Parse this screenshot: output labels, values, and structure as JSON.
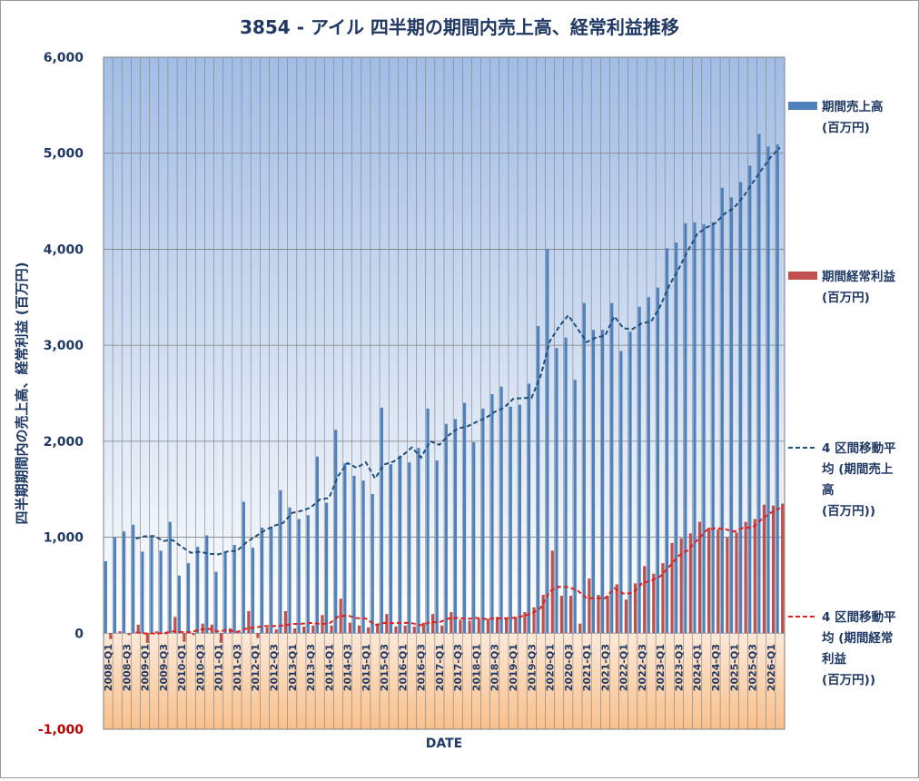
{
  "chart_data": {
    "type": "bar",
    "title": "3854 - アイル 四半期の期間内売上高、経常利益推移",
    "xlabel": "DATE",
    "ylabel": "四半期期間内の売上高、経常利益 (百万円)",
    "ylim": [
      -1000,
      6000
    ],
    "yticks": [
      -1000,
      0,
      1000,
      2000,
      3000,
      4000,
      5000,
      6000
    ],
    "ytick_labels": [
      "-1,000",
      "0",
      "1,000",
      "2,000",
      "3,000",
      "4,000",
      "5,000",
      "6,000"
    ],
    "categories": [
      "2008-Q1",
      "2008-Q2",
      "2008-Q3",
      "2008-Q4",
      "2009-Q1",
      "2009-Q2",
      "2009-Q3",
      "2009-Q4",
      "2010-Q1",
      "2010-Q2",
      "2010-Q3",
      "2010-Q4",
      "2011-Q1",
      "2011-Q2",
      "2011-Q3",
      "2011-Q4",
      "2012-Q1",
      "2012-Q2",
      "2012-Q3",
      "2012-Q4",
      "2013-Q1",
      "2013-Q2",
      "2013-Q3",
      "2013-Q4",
      "2014-Q1",
      "2014-Q2",
      "2014-Q3",
      "2014-Q4",
      "2015-Q1",
      "2015-Q2",
      "2015-Q3",
      "2015-Q4",
      "2016-Q1",
      "2016-Q2",
      "2016-Q3",
      "2016-Q4",
      "2017-Q1",
      "2017-Q2",
      "2017-Q3",
      "2017-Q4",
      "2018-Q1",
      "2018-Q2",
      "2018-Q3",
      "2018-Q4",
      "2019-Q1",
      "2019-Q2",
      "2019-Q3",
      "2019-Q4",
      "2020-Q1",
      "2020-Q2",
      "2020-Q3",
      "2020-Q4",
      "2021-Q1",
      "2021-Q2",
      "2021-Q3",
      "2021-Q4",
      "2022-Q1",
      "2022-Q2",
      "2022-Q3",
      "2022-Q4",
      "2023-Q1",
      "2023-Q2",
      "2023-Q3",
      "2023-Q4",
      "2024-Q1",
      "2024-Q2",
      "2024-Q3",
      "2024-Q4",
      "2025-Q1",
      "2025-Q2",
      "2025-Q3",
      "2025-Q4",
      "2026-Q1",
      "2026-Q2"
    ],
    "x_tick_labels": [
      "2008-Q1",
      "2008-Q3",
      "2009-Q1",
      "2009-Q3",
      "2010-Q1",
      "2010-Q3",
      "2011-Q1",
      "2011-Q3",
      "2012-Q1",
      "2012-Q3",
      "2013-Q1",
      "2013-Q3",
      "2014-Q1",
      "2014-Q3",
      "2015-Q1",
      "2015-Q3",
      "2016-Q1",
      "2016-Q3",
      "2017-Q1",
      "2017-Q3",
      "2018-Q1",
      "2018-Q3",
      "2019-Q1",
      "2019-Q3",
      "2020-Q1",
      "2020-Q3",
      "2021-Q1",
      "2021-Q3",
      "2022-Q1",
      "2022-Q3",
      "2023-Q1",
      "2023-Q3",
      "2024-Q1",
      "2024-Q3",
      "2025-Q1",
      "2025-Q3",
      "2026-Q1"
    ],
    "series": [
      {
        "name": "期間売上高 (百万円)",
        "kind": "bar",
        "color": "#4f81bd",
        "values": [
          750,
          1000,
          1060,
          1130,
          850,
          1010,
          860,
          1160,
          600,
          730,
          900,
          1020,
          640,
          850,
          920,
          1370,
          890,
          1100,
          1110,
          1490,
          1310,
          1190,
          1230,
          1840,
          1360,
          2120,
          1770,
          1640,
          1590,
          1450,
          2350,
          1760,
          1850,
          1780,
          1930,
          2340,
          1800,
          2180,
          2230,
          2400,
          1990,
          2340,
          2490,
          2570,
          2360,
          2380,
          2600,
          3200,
          4000,
          2970,
          3080,
          2640,
          3440,
          3160,
          3160,
          3440,
          2940,
          3140,
          3400,
          3500,
          3600,
          4010,
          4070,
          4270,
          4280,
          4260,
          4280,
          4640,
          4540,
          4700,
          4870,
          5200,
          5070,
          5090
        ]
      },
      {
        "name": "期間経常利益 (百万円)",
        "kind": "bar",
        "color": "#c0504d",
        "values": [
          -60,
          20,
          -20,
          90,
          -100,
          20,
          -10,
          170,
          -90,
          -20,
          100,
          90,
          -100,
          50,
          10,
          230,
          -50,
          60,
          40,
          230,
          50,
          70,
          80,
          190,
          80,
          360,
          110,
          80,
          60,
          90,
          200,
          70,
          80,
          70,
          110,
          200,
          80,
          220,
          140,
          130,
          150,
          150,
          170,
          150,
          170,
          220,
          270,
          400,
          860,
          390,
          390,
          100,
          570,
          400,
          390,
          510,
          350,
          520,
          700,
          620,
          730,
          940,
          990,
          1040,
          1160,
          1100,
          1080,
          1000,
          1050,
          1160,
          1190,
          1340,
          1330,
          1350
        ]
      },
      {
        "name": "4 区間移動平均 (期間売上高 (百万円))",
        "kind": "line",
        "color": "#1f4e79",
        "values": [
          null,
          null,
          null,
          985,
          1010,
          1012,
          962,
          970,
          900,
          838,
          848,
          828,
          822,
          852,
          858,
          945,
          1008,
          1070,
          1118,
          1148,
          1253,
          1275,
          1308,
          1393,
          1408,
          1638,
          1773,
          1723,
          1780,
          1613,
          1758,
          1788,
          1853,
          1935,
          1830,
          2000,
          1963,
          2063,
          2133,
          2153,
          2200,
          2240,
          2305,
          2348,
          2440,
          2450,
          2450,
          2683,
          3045,
          3193,
          3313,
          3173,
          3033,
          3080,
          3100,
          3300,
          3175,
          3170,
          3230,
          3245,
          3410,
          3628,
          3795,
          3988,
          4158,
          4225,
          4275,
          4370,
          4430,
          4545,
          4688,
          4828,
          4960,
          5058
        ]
      },
      {
        "name": "4 区間移動平均 (期間経常利益 (百万円))",
        "kind": "line",
        "color": "#e0201b",
        "values": [
          null,
          null,
          null,
          10,
          -2,
          -3,
          0,
          20,
          13,
          10,
          40,
          45,
          18,
          35,
          13,
          48,
          60,
          75,
          75,
          80,
          95,
          98,
          108,
          98,
          98,
          173,
          185,
          158,
          153,
          85,
          108,
          105,
          110,
          105,
          83,
          115,
          115,
          153,
          160,
          148,
          160,
          148,
          153,
          155,
          160,
          178,
          203,
          265,
          438,
          485,
          480,
          445,
          365,
          365,
          365,
          468,
          413,
          418,
          520,
          548,
          593,
          698,
          808,
          865,
          968,
          1073,
          1095,
          1085,
          1058,
          1098,
          1100,
          1185,
          1255,
          1303
        ]
      }
    ]
  },
  "legend": [
    {
      "lines": [
        "期間売上高",
        "(百万円)"
      ],
      "marker": "bar",
      "color": "#4f81bd"
    },
    {
      "lines": [
        "期間経常利益",
        "(百万円)"
      ],
      "marker": "bar",
      "color": "#c0504d"
    },
    {
      "lines": [
        "4 区間移動平",
        "均 (期間売上",
        "高",
        "(百万円))"
      ],
      "marker": "line",
      "color": "#1f4e79"
    },
    {
      "lines": [
        "4 区間移動平",
        "均 (期間経常",
        "利益",
        "(百万円))"
      ],
      "marker": "line",
      "color": "#e0201b"
    }
  ]
}
